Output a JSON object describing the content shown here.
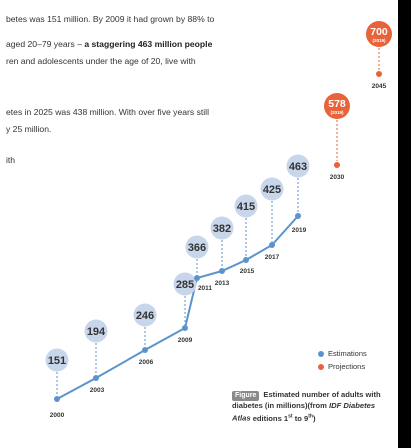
{
  "text": {
    "line1": "betes was 151 million. By 2009 it had grown by 88% to",
    "line2a": "aged 20–79 years – ",
    "line2b": "a staggering 463 million people",
    "line3": "ren and adolescents under the age of 20, live with",
    "line4": "etes in 2025 was 438 million. With over five years still",
    "line5": "y 25 million.",
    "line6": "ith"
  },
  "caption": {
    "tag": "Figure",
    "text": "Estimated number of adults with",
    "source_prefix": "diabetes (in millions)(from ",
    "source_italic": "IDF Diabetes Atlas",
    "source_suffix": " editions 1st to 9th)"
  },
  "colors": {
    "estimate_line": "#5b93cc",
    "estimate_bubble": "#c8d6ec",
    "projection": "#e8633a",
    "text_dark": "#333333"
  },
  "chart_data": {
    "type": "line",
    "title": "",
    "xlabel": "",
    "ylabel": "",
    "series": [
      {
        "name": "Estimations",
        "x": [
          "2000",
          "2003",
          "2006",
          "2009",
          "2011",
          "2013",
          "2015",
          "2017",
          "2019"
        ],
        "values": [
          151,
          194,
          246,
          285,
          366,
          382,
          415,
          425,
          463
        ]
      },
      {
        "name": "Projections",
        "x": [
          "2030",
          "2045"
        ],
        "values": [
          578,
          700
        ],
        "labels": [
          "(2019)",
          "(2019)"
        ]
      }
    ],
    "legend": "bottom-right"
  }
}
